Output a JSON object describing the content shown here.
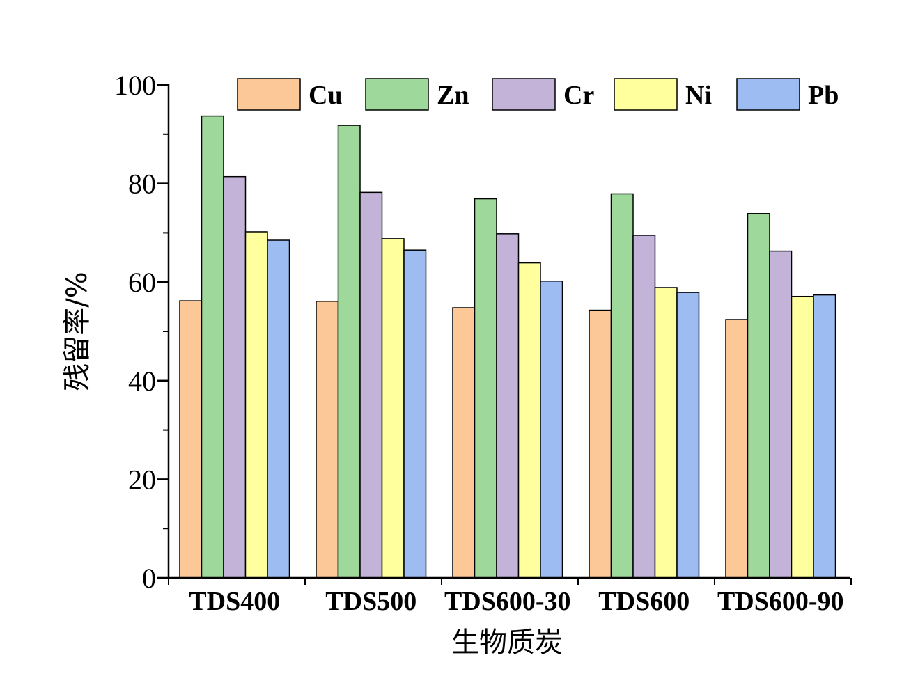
{
  "chart_data": {
    "type": "bar",
    "title": "",
    "xlabel": "生物质炭",
    "ylabel": "残留率/%",
    "ylim": [
      0,
      100
    ],
    "yticks": [
      0,
      20,
      40,
      60,
      80,
      100
    ],
    "categories": [
      "TDS400",
      "TDS500",
      "TDS600-30",
      "TDS600",
      "TDS600-90"
    ],
    "series": [
      {
        "name": "Cu",
        "color": "#FCC897",
        "values": [
          56.2,
          56.1,
          54.8,
          54.3,
          52.4
        ]
      },
      {
        "name": "Zn",
        "color": "#9FD89B",
        "values": [
          93.7,
          91.8,
          76.9,
          77.9,
          73.9
        ]
      },
      {
        "name": "Cr",
        "color": "#C3B3D8",
        "values": [
          81.4,
          78.2,
          69.8,
          69.5,
          66.3
        ]
      },
      {
        "name": "Ni",
        "color": "#FFFF9E",
        "values": [
          70.2,
          68.8,
          63.9,
          58.9,
          57.1
        ]
      },
      {
        "name": "Pb",
        "color": "#9DBCF2",
        "values": [
          68.5,
          66.5,
          60.2,
          57.9,
          57.4
        ]
      }
    ],
    "grid": false,
    "legend": "top"
  }
}
